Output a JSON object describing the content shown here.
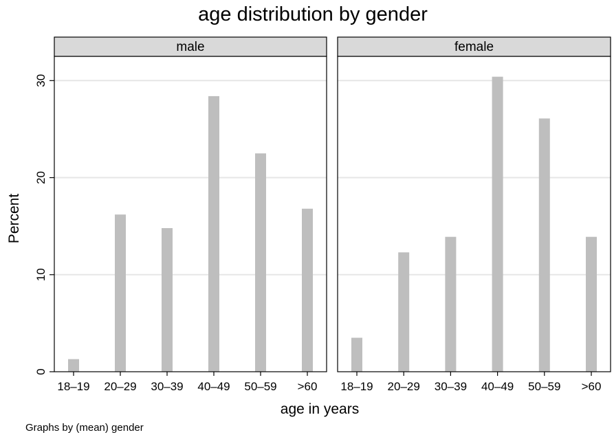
{
  "figure": {
    "title": "age distribution by gender",
    "note": "Graphs by (mean) gender"
  },
  "chart_data": {
    "type": "bar",
    "title": "age distribution by gender",
    "xlabel": "age in years",
    "ylabel": "Percent",
    "ylim": [
      0,
      32.5
    ],
    "yticks": [
      0,
      10,
      20,
      30
    ],
    "grid": true,
    "bar_color": "#bebebe",
    "strip_color": "#d9d9d9",
    "categories": [
      "18–19",
      "20–29",
      "30–39",
      "40–49",
      "50–59",
      ">60"
    ],
    "panels": [
      {
        "name": "male",
        "values": [
          1.3,
          16.2,
          14.8,
          28.4,
          22.5,
          16.8
        ]
      },
      {
        "name": "female",
        "values": [
          3.5,
          12.3,
          13.9,
          30.4,
          26.1,
          13.9
        ]
      }
    ]
  }
}
